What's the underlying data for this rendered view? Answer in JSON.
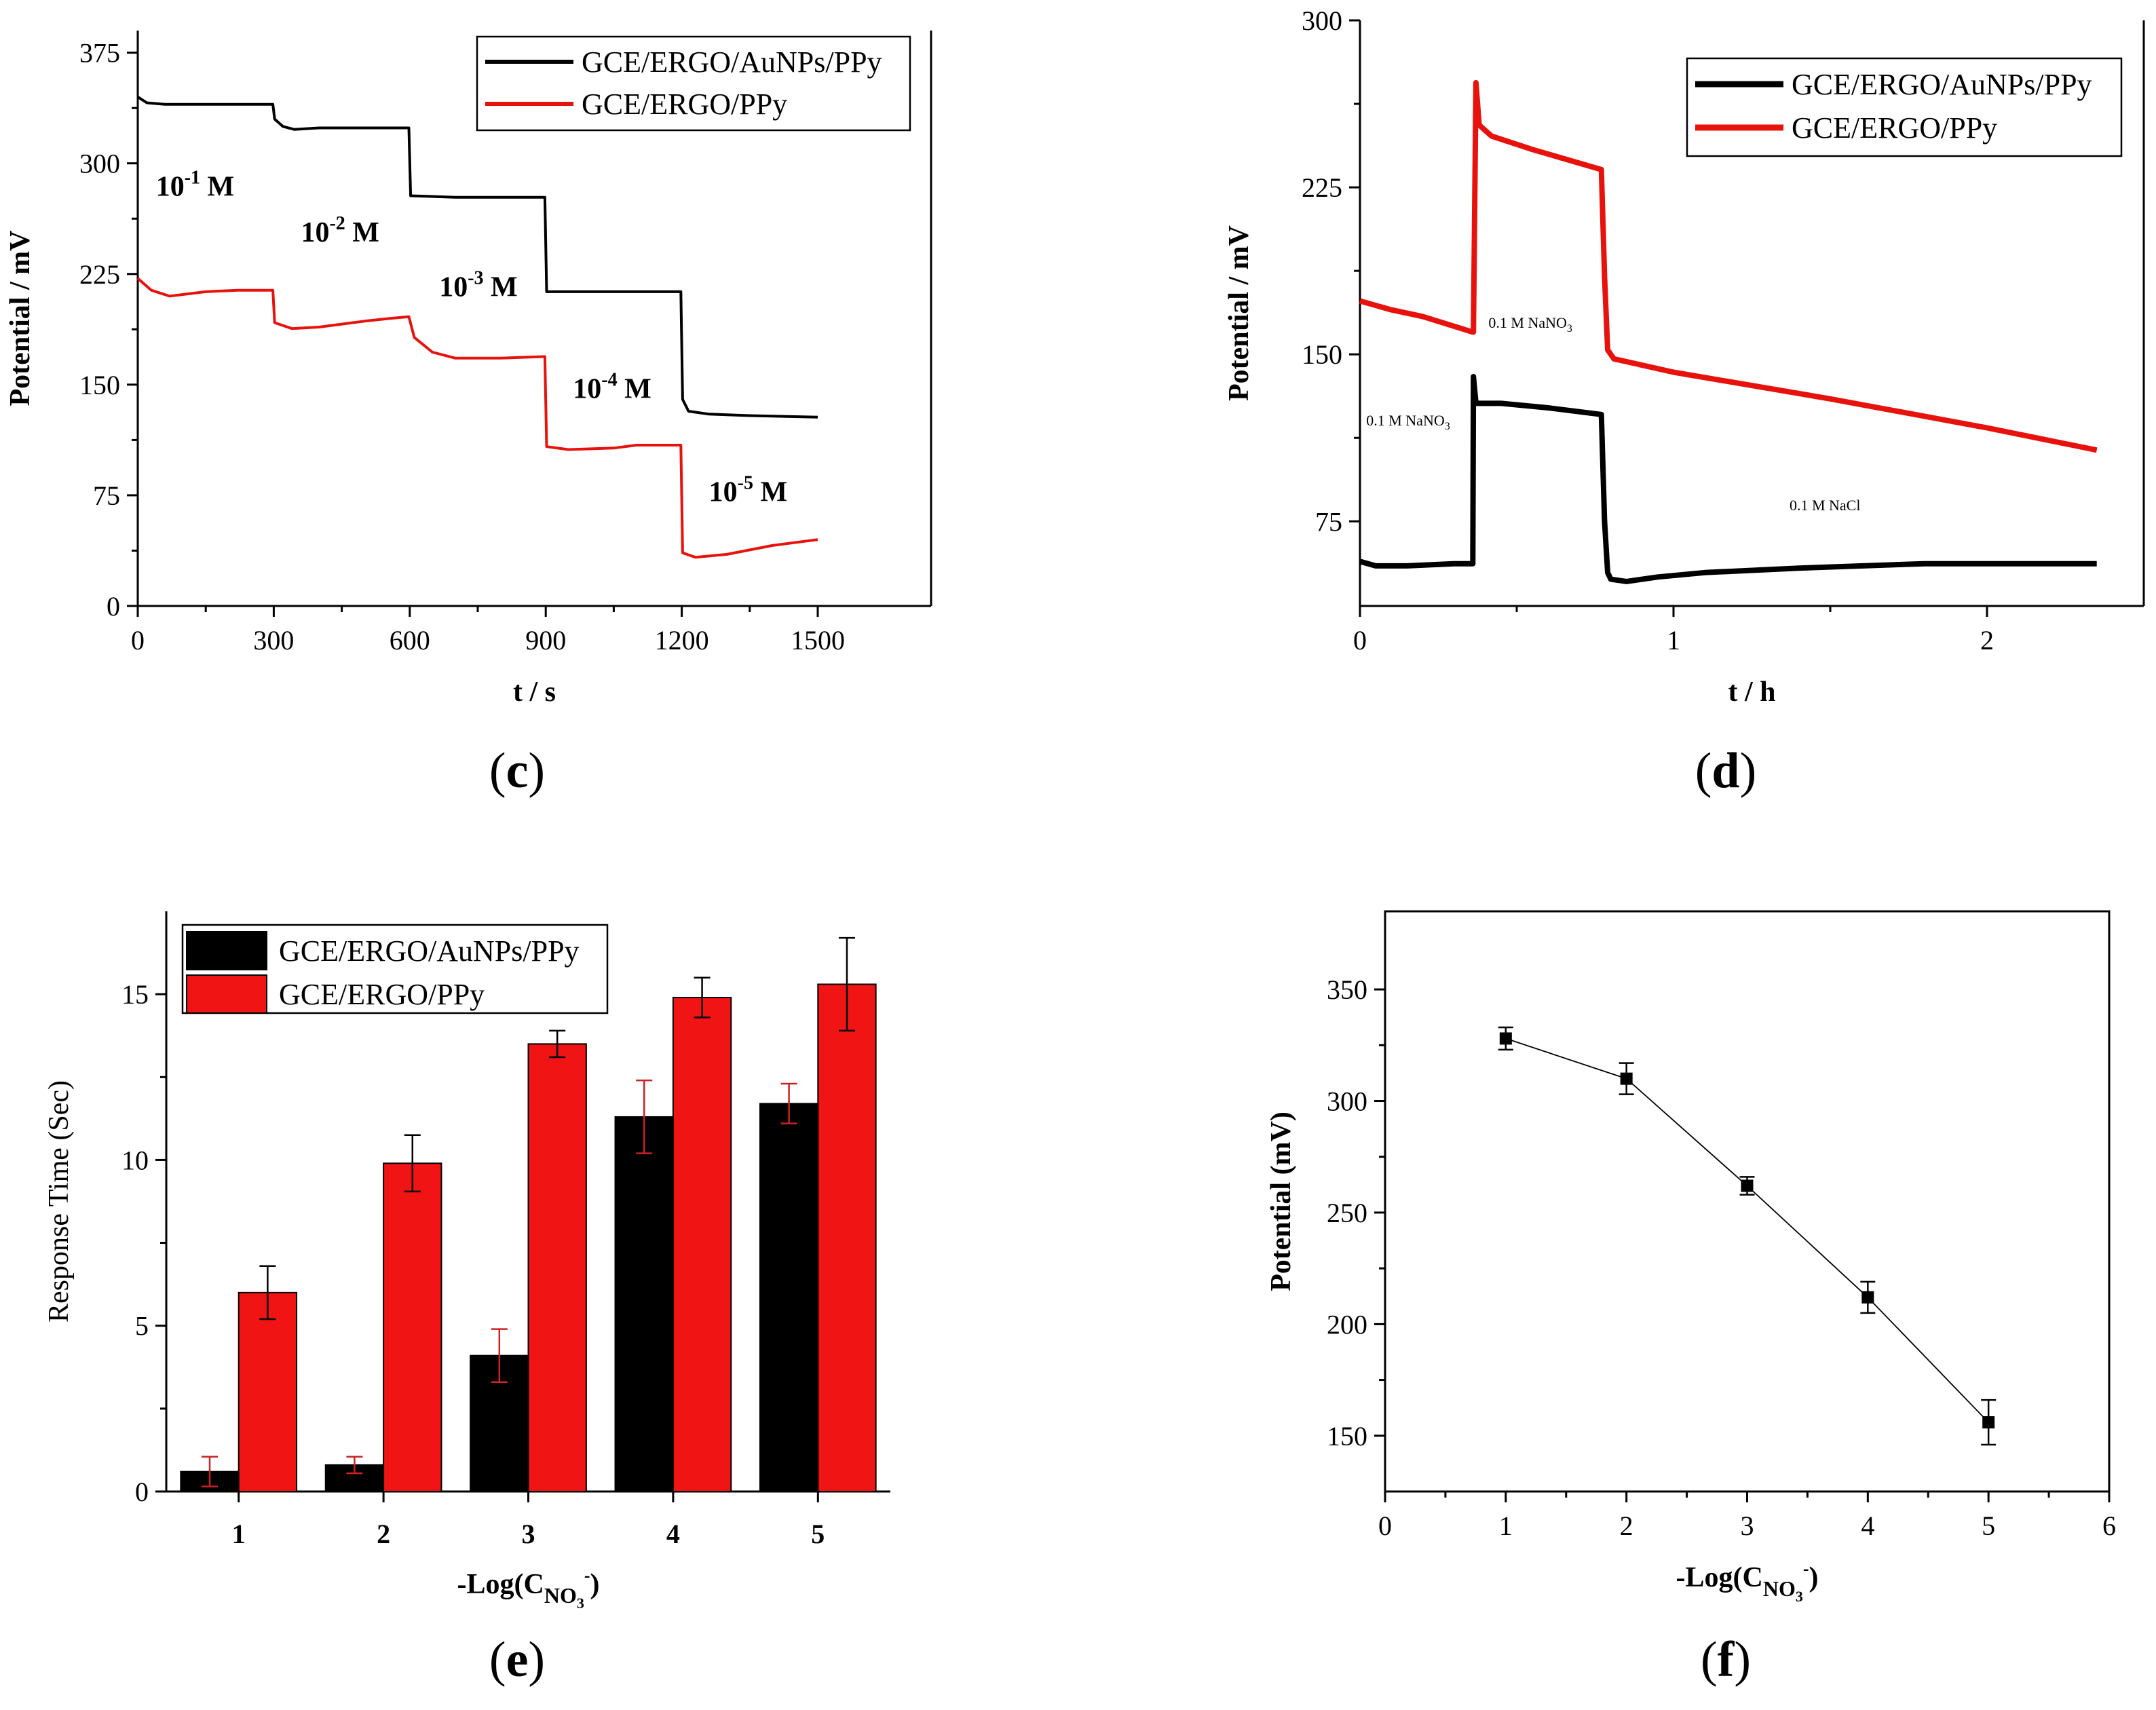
{
  "figure": {
    "panel_labels": [
      "c",
      "d",
      "e",
      "f"
    ]
  },
  "chart_data": [
    {
      "id": "c",
      "type": "line",
      "xlabel": "t / s",
      "ylabel": "Potential / mV",
      "xlim": [
        0,
        1750
      ],
      "ylim": [
        0,
        390
      ],
      "xticks": [
        0,
        300,
        600,
        900,
        1200,
        1500
      ],
      "yticks": [
        0,
        75,
        150,
        225,
        300,
        375
      ],
      "grid": false,
      "legend_position": "top-right",
      "series": [
        {
          "name": "GCE/ERGO/AuNPs/PPy",
          "color": "#000000",
          "x": [
            0,
            20,
            60,
            120,
            200,
            298,
            302,
            320,
            345,
            400,
            500,
            598,
            602,
            700,
            800,
            898,
            902,
            1000,
            1100,
            1198,
            1202,
            1215,
            1260,
            1350,
            1500
          ],
          "y": [
            345,
            341,
            340,
            340,
            340,
            340,
            330,
            325,
            323,
            324,
            324,
            324,
            278,
            277,
            277,
            277,
            213,
            213,
            213,
            213,
            140,
            132,
            130,
            129,
            128
          ]
        },
        {
          "name": "GCE/ERGO/PPy",
          "color": "#e8120c",
          "x": [
            0,
            30,
            70,
            150,
            220,
            298,
            302,
            340,
            400,
            500,
            560,
            598,
            610,
            650,
            700,
            800,
            898,
            902,
            950,
            1050,
            1100,
            1198,
            1202,
            1230,
            1300,
            1400,
            1500
          ],
          "y": [
            222,
            214,
            210,
            213,
            214,
            214,
            192,
            188,
            189,
            193,
            195,
            196,
            182,
            172,
            168,
            168,
            169,
            108,
            106,
            107,
            109,
            109,
            36,
            33,
            35,
            41,
            45
          ]
        }
      ],
      "annotations": [
        {
          "base": "10",
          "exp": "-1",
          "suffix": " M",
          "x": 40,
          "y": 278
        },
        {
          "base": "10",
          "exp": "-2",
          "suffix": " M",
          "x": 360,
          "y": 247
        },
        {
          "base": "10",
          "exp": "-3",
          "suffix": " M",
          "x": 665,
          "y": 210
        },
        {
          "base": "10",
          "exp": "-4",
          "suffix": " M",
          "x": 960,
          "y": 141
        },
        {
          "base": "10",
          "exp": "-5",
          "suffix": " M",
          "x": 1260,
          "y": 71
        }
      ]
    },
    {
      "id": "d",
      "type": "line",
      "xlabel": "t / h",
      "ylabel": "Potential / mV",
      "xlim": [
        0,
        2.5
      ],
      "ylim": [
        37,
        300
      ],
      "xticks": [
        0,
        1,
        2
      ],
      "yticks": [
        75,
        150,
        225,
        300
      ],
      "grid": false,
      "legend_position": "top-right",
      "series": [
        {
          "name": "GCE/ERGO/AuNPs/PPy",
          "color": "#000000",
          "x": [
            0,
            0.05,
            0.15,
            0.3,
            0.36,
            0.362,
            0.37,
            0.385,
            0.45,
            0.6,
            0.77,
            0.78,
            0.79,
            0.8,
            0.85,
            0.95,
            1.1,
            1.4,
            1.8,
            2.35
          ],
          "y": [
            57,
            55,
            55,
            56,
            56,
            140,
            128,
            128,
            128,
            126,
            123,
            75,
            52,
            49,
            48,
            50,
            52,
            54,
            56,
            56
          ]
        },
        {
          "name": "GCE/ERGO/PPy",
          "color": "#e8120c",
          "x": [
            0,
            0.1,
            0.2,
            0.36,
            0.362,
            0.37,
            0.38,
            0.42,
            0.55,
            0.77,
            0.78,
            0.79,
            0.81,
            1.0,
            1.5,
            2.0,
            2.35
          ],
          "y": [
            174,
            170,
            167,
            160,
            160,
            272,
            253,
            248,
            242,
            233,
            185,
            152,
            148,
            142,
            130,
            117,
            107
          ]
        }
      ],
      "annotations": [
        {
          "base": "0.1 M NaNO",
          "sub": "3",
          "x": 0.02,
          "y": 118
        },
        {
          "base": "0.1 M NaNO",
          "sub": "3",
          "x": 0.41,
          "y": 162
        },
        {
          "base": "0.1 M NaCl",
          "x": 1.37,
          "y": 80
        }
      ]
    },
    {
      "id": "e",
      "type": "bar",
      "xlabel_base": "-Log(C",
      "xlabel_sub": "NO",
      "xlabel_subsub": "3",
      "xlabel_sup": "-",
      "xlabel_end": ")",
      "ylabel": "Response Time (Sec)",
      "categories": [
        "1",
        "2",
        "3",
        "4",
        "5"
      ],
      "xlim": [
        0.5,
        5.5
      ],
      "ylim": [
        0,
        17.5
      ],
      "yticks": [
        0,
        5,
        10,
        15
      ],
      "grid": false,
      "legend_position": "top-left",
      "series": [
        {
          "name": "GCE/ERGO/AuNPs/PPy",
          "color": "#000000",
          "values": [
            0.6,
            0.8,
            4.1,
            11.3,
            11.7
          ],
          "errors": [
            0.45,
            0.25,
            0.8,
            1.1,
            0.6
          ],
          "error_color": "#cc2222"
        },
        {
          "name": "GCE/ERGO/PPy",
          "color": "#f01414",
          "values": [
            6.0,
            9.9,
            13.5,
            14.9,
            15.3
          ],
          "errors": [
            0.8,
            0.85,
            0.4,
            0.6,
            1.4
          ],
          "error_color": "#000000"
        }
      ]
    },
    {
      "id": "f",
      "type": "scatter",
      "xlabel_base": "-Log(C",
      "xlabel_sub": "NO",
      "xlabel_subsub": "3",
      "xlabel_sup": "-",
      "xlabel_end": ")",
      "ylabel": "Potential (mV)",
      "xlim": [
        0,
        6
      ],
      "ylim": [
        125,
        385
      ],
      "xticks": [
        0,
        1,
        2,
        3,
        4,
        5,
        6
      ],
      "yticks": [
        150,
        200,
        250,
        300,
        350
      ],
      "grid": false,
      "series": [
        {
          "name": "Potential",
          "color": "#000000",
          "x": [
            1,
            2,
            3,
            4,
            5
          ],
          "y": [
            328,
            310,
            262,
            212,
            156
          ],
          "errors": [
            5,
            7,
            4,
            7,
            10
          ]
        }
      ]
    }
  ]
}
